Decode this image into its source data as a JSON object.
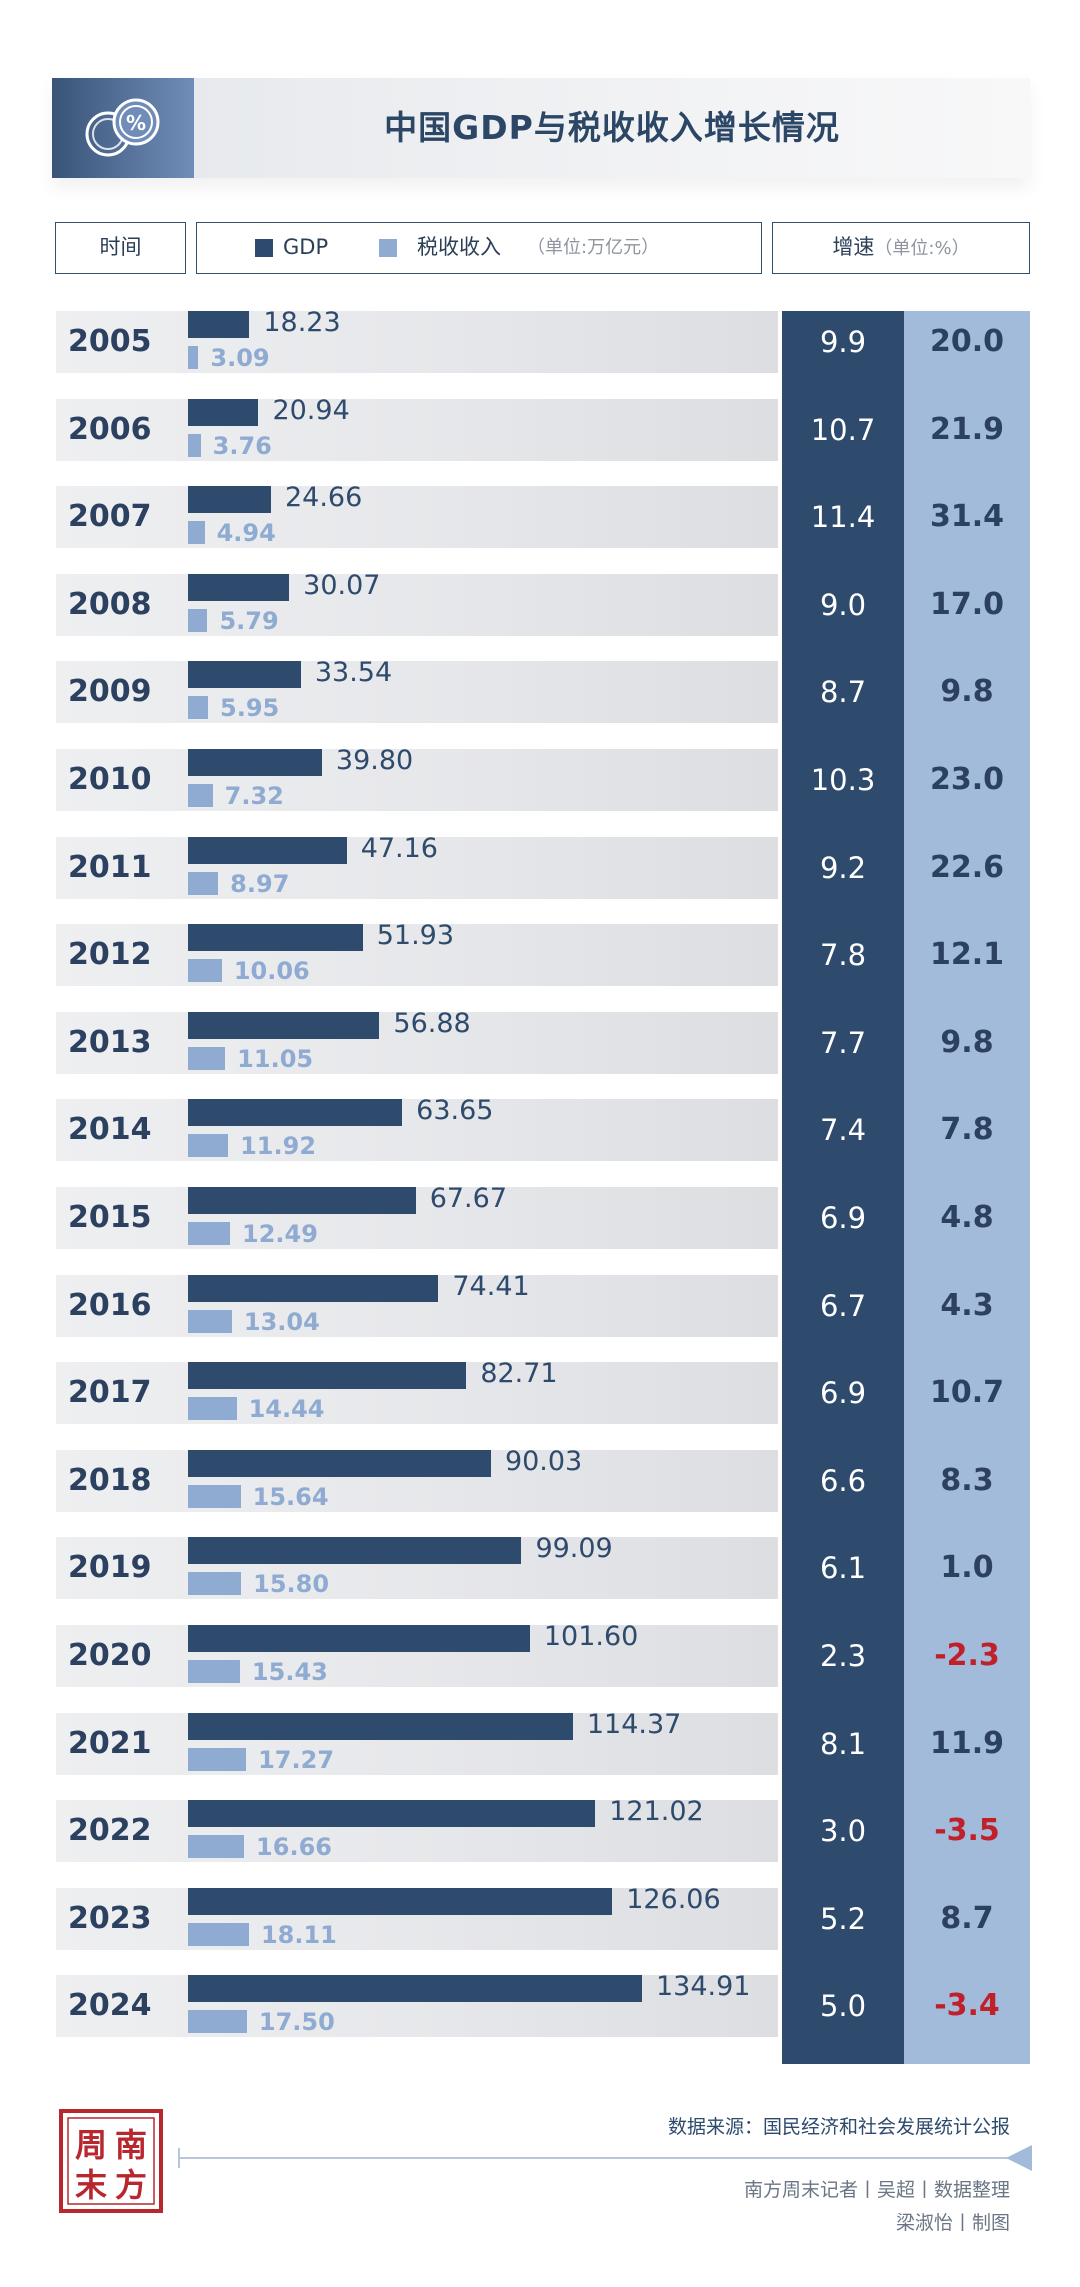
{
  "title": "中国GDP与税收收入增长情况",
  "header": {
    "time_label": "时间",
    "legend_gdp": "GDP",
    "legend_tax": "税收收入",
    "legend_unit": "（单位:万亿元）",
    "speed_label": "增速",
    "speed_unit": "（单位:%）"
  },
  "colors": {
    "gdp": "#2e4a6c",
    "tax": "#8fabd2",
    "negative": "#c0202a"
  },
  "chart_data": {
    "type": "bar",
    "title": "中国GDP与税收收入增长情况",
    "categories": [
      "2005",
      "2006",
      "2007",
      "2008",
      "2009",
      "2010",
      "2011",
      "2012",
      "2013",
      "2014",
      "2015",
      "2016",
      "2017",
      "2018",
      "2019",
      "2020",
      "2021",
      "2022",
      "2023",
      "2024"
    ],
    "series": [
      {
        "name": "GDP",
        "values": [
          18.23,
          20.94,
          24.66,
          30.07,
          33.54,
          39.8,
          47.16,
          51.93,
          56.88,
          63.65,
          67.67,
          74.41,
          82.71,
          90.03,
          99.09,
          101.6,
          114.37,
          121.02,
          126.06,
          134.91
        ]
      },
      {
        "name": "税收收入",
        "values": [
          3.09,
          3.76,
          4.94,
          5.79,
          5.95,
          7.32,
          8.97,
          10.06,
          11.05,
          11.92,
          12.49,
          13.04,
          14.44,
          15.64,
          15.8,
          15.43,
          17.27,
          16.66,
          18.11,
          17.5
        ]
      }
    ],
    "growth": {
      "gdp": [
        "9.9",
        "10.7",
        "11.4",
        "9.0",
        "8.7",
        "10.3",
        "9.2",
        "7.8",
        "7.7",
        "7.4",
        "6.9",
        "6.7",
        "6.9",
        "6.6",
        "6.1",
        "2.3",
        "8.1",
        "3.0",
        "5.2",
        "5.0"
      ],
      "tax": [
        "20.0",
        "21.9",
        "31.4",
        "17.0",
        "9.8",
        "23.0",
        "22.6",
        "12.1",
        "9.8",
        "7.8",
        "4.8",
        "4.3",
        "10.7",
        "8.3",
        "1.0",
        "-2.3",
        "11.9",
        "-3.5",
        "8.7",
        "-3.4"
      ]
    },
    "value_unit": "万亿元",
    "growth_unit": "%",
    "xlim": [
      0,
      140
    ]
  },
  "footer": {
    "source": "数据来源：国民经济和社会发展统计公报",
    "credit_line1": "南方周末记者丨吴超丨数据整理",
    "credit_line2": "梁淑怡丨制图",
    "seal_text": "周南末方"
  }
}
